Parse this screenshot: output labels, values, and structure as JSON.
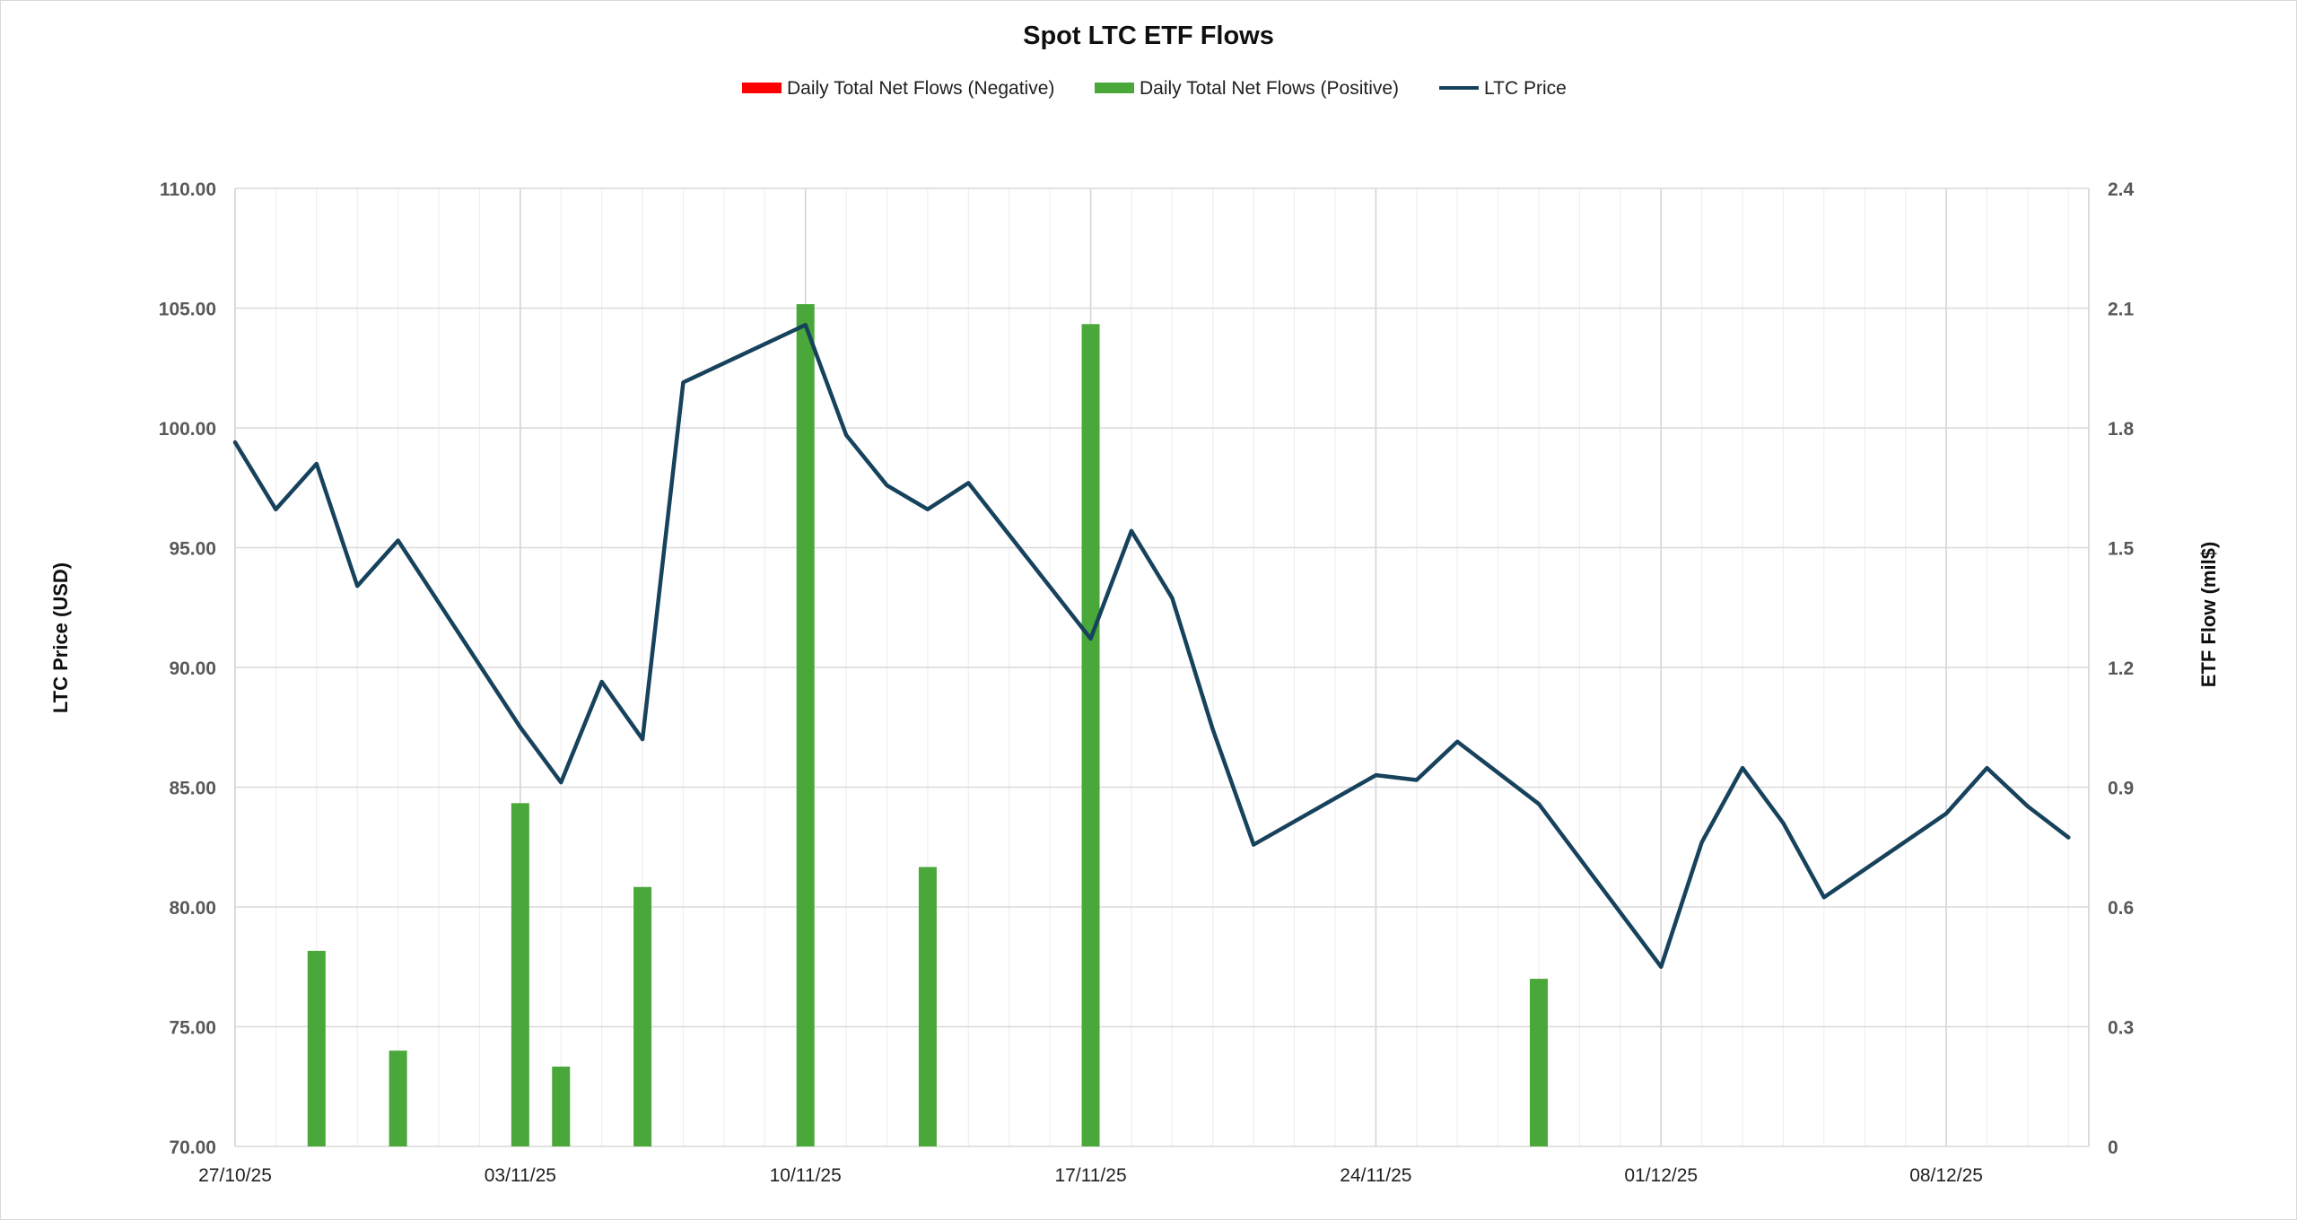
{
  "chart_data": {
    "type": "bar",
    "title": "Spot LTC ETF Flows",
    "legend": [
      {
        "name": "Daily Total Net Flows (Negative)",
        "color": "#ff0000",
        "kind": "bar"
      },
      {
        "name": "Daily Total Net Flows (Positive)",
        "color": "#4aa83a",
        "kind": "bar"
      },
      {
        "name": "LTC Price",
        "color": "#17425c",
        "kind": "line"
      }
    ],
    "legend_position": "top-center",
    "grid": true,
    "xaxis": {
      "start": "2025-10-27",
      "end": "2025-12-12",
      "tick_labels": [
        "27/10/25",
        "03/11/25",
        "10/11/25",
        "17/11/25",
        "24/11/25",
        "01/12/25",
        "08/12/25"
      ]
    },
    "y_left": {
      "label": "LTC Price (USD)",
      "ylim": [
        70,
        110
      ],
      "tick_labels": [
        "70.00",
        "75.00",
        "80.00",
        "85.00",
        "90.00",
        "95.00",
        "100.00",
        "105.00",
        "110.00"
      ]
    },
    "y_right": {
      "label": "ETF Flow (mil$)",
      "ylim": [
        0,
        2.4
      ],
      "tick_labels": [
        "0",
        "0.3",
        "0.6",
        "0.9",
        "1.2",
        "1.5",
        "1.8",
        "2.1",
        "2.4"
      ]
    },
    "series": [
      {
        "name": "LTC Price",
        "type": "line",
        "axis": "left",
        "color": "#17425c",
        "points": [
          {
            "x": "2025-10-27",
            "y": 99.4
          },
          {
            "x": "2025-10-28",
            "y": 96.6
          },
          {
            "x": "2025-10-29",
            "y": 98.5
          },
          {
            "x": "2025-10-30",
            "y": 93.4
          },
          {
            "x": "2025-10-31",
            "y": 95.3
          },
          {
            "x": "2025-11-03",
            "y": 87.5
          },
          {
            "x": "2025-11-04",
            "y": 85.2
          },
          {
            "x": "2025-11-05",
            "y": 89.4
          },
          {
            "x": "2025-11-06",
            "y": 87.0
          },
          {
            "x": "2025-11-07",
            "y": 101.9
          },
          {
            "x": "2025-11-10",
            "y": 104.3
          },
          {
            "x": "2025-11-11",
            "y": 99.7
          },
          {
            "x": "2025-11-12",
            "y": 97.6
          },
          {
            "x": "2025-11-13",
            "y": 96.6
          },
          {
            "x": "2025-11-14",
            "y": 97.7
          },
          {
            "x": "2025-11-17",
            "y": 91.2
          },
          {
            "x": "2025-11-18",
            "y": 95.7
          },
          {
            "x": "2025-11-19",
            "y": 92.9
          },
          {
            "x": "2025-11-20",
            "y": 87.4
          },
          {
            "x": "2025-11-21",
            "y": 82.6
          },
          {
            "x": "2025-11-24",
            "y": 85.5
          },
          {
            "x": "2025-11-25",
            "y": 85.3
          },
          {
            "x": "2025-11-26",
            "y": 86.9
          },
          {
            "x": "2025-11-28",
            "y": 84.3
          },
          {
            "x": "2025-12-01",
            "y": 77.5
          },
          {
            "x": "2025-12-02",
            "y": 82.7
          },
          {
            "x": "2025-12-03",
            "y": 85.8
          },
          {
            "x": "2025-12-04",
            "y": 83.5
          },
          {
            "x": "2025-12-05",
            "y": 80.4
          },
          {
            "x": "2025-12-08",
            "y": 83.9
          },
          {
            "x": "2025-12-09",
            "y": 85.8
          },
          {
            "x": "2025-12-10",
            "y": 84.2
          },
          {
            "x": "2025-12-11",
            "y": 82.9
          }
        ]
      },
      {
        "name": "Daily Total Net Flows (Positive)",
        "type": "bar",
        "axis": "right",
        "color": "#4aa83a",
        "points": [
          {
            "x": "2025-10-29",
            "y": 0.49
          },
          {
            "x": "2025-10-31",
            "y": 0.24
          },
          {
            "x": "2025-11-03",
            "y": 0.86
          },
          {
            "x": "2025-11-04",
            "y": 0.2
          },
          {
            "x": "2025-11-06",
            "y": 0.65
          },
          {
            "x": "2025-11-10",
            "y": 2.11
          },
          {
            "x": "2025-11-13",
            "y": 0.7
          },
          {
            "x": "2025-11-17",
            "y": 2.06
          },
          {
            "x": "2025-11-28",
            "y": 0.42
          }
        ]
      },
      {
        "name": "Daily Total Net Flows (Negative)",
        "type": "bar",
        "axis": "right",
        "color": "#ff0000",
        "points": []
      }
    ]
  }
}
